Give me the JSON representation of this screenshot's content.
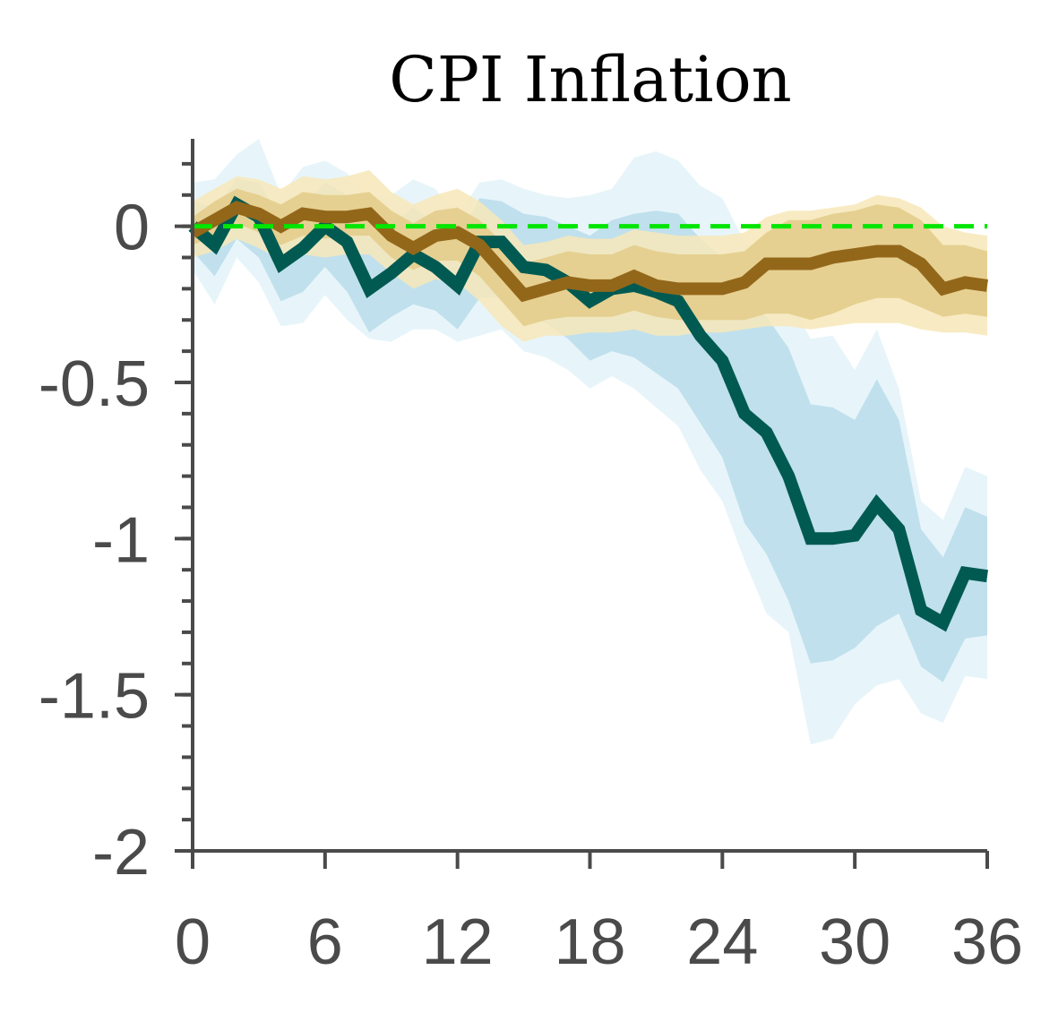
{
  "chart_data": {
    "type": "line",
    "title": "CPI Inflation",
    "xlabel": "",
    "ylabel": "",
    "xlim": [
      0,
      36
    ],
    "ylim": [
      -2,
      0.28
    ],
    "x_ticks": [
      0,
      6,
      12,
      18,
      24,
      30,
      36
    ],
    "y_ticks": [
      0,
      -0.5,
      -1,
      -1.5,
      -2
    ],
    "y_tick_labels": [
      "0",
      "-0.5",
      "-1",
      "-1.5",
      "-2"
    ],
    "grid": false,
    "legend": "none",
    "reference_line": {
      "y": 0,
      "style": "dashed",
      "color": "#00e600"
    },
    "x": [
      0,
      1,
      2,
      3,
      4,
      5,
      6,
      7,
      8,
      9,
      10,
      11,
      12,
      13,
      14,
      15,
      16,
      17,
      18,
      19,
      20,
      21,
      22,
      23,
      24,
      25,
      26,
      27,
      28,
      29,
      30,
      31,
      32,
      33,
      34,
      35,
      36
    ],
    "series": [
      {
        "color": "#005a52",
        "band_inner_color": "#b8dcea",
        "band_outer_color": "#e3f3f9",
        "values": [
          0,
          -0.06,
          0.07,
          0.03,
          -0.12,
          -0.07,
          0.0,
          -0.05,
          -0.2,
          -0.15,
          -0.09,
          -0.13,
          -0.19,
          -0.05,
          -0.05,
          -0.13,
          -0.14,
          -0.18,
          -0.24,
          -0.2,
          -0.19,
          -0.21,
          -0.24,
          -0.35,
          -0.43,
          -0.6,
          -0.66,
          -0.8,
          -1.0,
          -1.0,
          -0.99,
          -0.89,
          -0.97,
          -1.23,
          -1.27,
          -1.11,
          -1.12
        ],
        "inner_lower": [
          -0.08,
          -0.16,
          -0.04,
          -0.1,
          -0.24,
          -0.21,
          -0.13,
          -0.21,
          -0.34,
          -0.29,
          -0.25,
          -0.27,
          -0.33,
          -0.23,
          -0.23,
          -0.3,
          -0.31,
          -0.36,
          -0.43,
          -0.4,
          -0.42,
          -0.47,
          -0.52,
          -0.63,
          -0.74,
          -0.95,
          -1.05,
          -1.2,
          -1.4,
          -1.39,
          -1.35,
          -1.28,
          -1.24,
          -1.41,
          -1.46,
          -1.32,
          -1.31
        ],
        "inner_upper": [
          0.08,
          0.06,
          0.15,
          0.14,
          0.02,
          0.07,
          0.14,
          0.1,
          -0.04,
          0.01,
          0.06,
          0.01,
          -0.04,
          0.09,
          0.08,
          0.04,
          0.03,
          0.0,
          -0.03,
          0.02,
          0.04,
          0.05,
          0.04,
          -0.04,
          -0.1,
          -0.26,
          -0.29,
          -0.39,
          -0.57,
          -0.58,
          -0.62,
          -0.49,
          -0.62,
          -0.97,
          -1.06,
          -0.9,
          -0.93
        ],
        "outer_lower": [
          -0.14,
          -0.25,
          -0.1,
          -0.18,
          -0.32,
          -0.31,
          -0.22,
          -0.3,
          -0.36,
          -0.37,
          -0.33,
          -0.33,
          -0.37,
          -0.35,
          -0.33,
          -0.4,
          -0.42,
          -0.46,
          -0.52,
          -0.48,
          -0.52,
          -0.58,
          -0.64,
          -0.78,
          -0.88,
          -1.07,
          -1.24,
          -1.3,
          -1.66,
          -1.64,
          -1.53,
          -1.47,
          -1.45,
          -1.56,
          -1.59,
          -1.44,
          -1.45
        ],
        "outer_upper": [
          0.14,
          0.15,
          0.23,
          0.28,
          0.1,
          0.19,
          0.21,
          0.17,
          0.09,
          0.1,
          0.15,
          0.12,
          0.03,
          0.14,
          0.15,
          0.12,
          0.1,
          0.09,
          0.1,
          0.12,
          0.22,
          0.24,
          0.21,
          0.13,
          0.09,
          -0.05,
          -0.12,
          -0.23,
          -0.36,
          -0.35,
          -0.46,
          -0.33,
          -0.52,
          -0.88,
          -0.94,
          -0.77,
          -0.8
        ]
      },
      {
        "color": "#93671a",
        "band_inner_color": "#e3cb88",
        "band_outer_color": "#f7e7b8",
        "values": [
          -0.02,
          0.02,
          0.06,
          0.04,
          0.0,
          0.04,
          0.03,
          0.03,
          0.04,
          -0.03,
          -0.07,
          -0.03,
          -0.02,
          -0.06,
          -0.14,
          -0.22,
          -0.2,
          -0.18,
          -0.19,
          -0.19,
          -0.16,
          -0.19,
          -0.2,
          -0.2,
          -0.2,
          -0.18,
          -0.12,
          -0.12,
          -0.12,
          -0.1,
          -0.09,
          -0.08,
          -0.08,
          -0.12,
          -0.2,
          -0.18,
          -0.19
        ],
        "inner_lower": [
          -0.06,
          -0.03,
          0.01,
          -0.02,
          -0.06,
          -0.03,
          -0.04,
          -0.03,
          -0.03,
          -0.1,
          -0.14,
          -0.11,
          -0.11,
          -0.16,
          -0.24,
          -0.32,
          -0.3,
          -0.29,
          -0.29,
          -0.29,
          -0.27,
          -0.29,
          -0.3,
          -0.3,
          -0.3,
          -0.3,
          -0.28,
          -0.28,
          -0.3,
          -0.28,
          -0.25,
          -0.23,
          -0.23,
          -0.26,
          -0.29,
          -0.28,
          -0.29
        ],
        "inner_upper": [
          0.03,
          0.08,
          0.12,
          0.1,
          0.07,
          0.11,
          0.1,
          0.1,
          0.11,
          0.05,
          0.01,
          0.05,
          0.06,
          0.02,
          -0.05,
          -0.12,
          -0.1,
          -0.08,
          -0.09,
          -0.09,
          -0.06,
          -0.08,
          -0.09,
          -0.09,
          -0.09,
          -0.08,
          -0.02,
          0.02,
          0.02,
          0.04,
          0.05,
          0.07,
          0.06,
          0.02,
          -0.06,
          -0.06,
          -0.08
        ],
        "outer_lower": [
          -0.1,
          -0.08,
          -0.04,
          -0.07,
          -0.11,
          -0.09,
          -0.1,
          -0.09,
          -0.09,
          -0.15,
          -0.2,
          -0.17,
          -0.18,
          -0.24,
          -0.32,
          -0.37,
          -0.35,
          -0.35,
          -0.34,
          -0.34,
          -0.33,
          -0.35,
          -0.35,
          -0.34,
          -0.34,
          -0.33,
          -0.32,
          -0.32,
          -0.33,
          -0.32,
          -0.31,
          -0.31,
          -0.31,
          -0.33,
          -0.34,
          -0.34,
          -0.35
        ],
        "outer_upper": [
          0.08,
          0.12,
          0.16,
          0.15,
          0.12,
          0.16,
          0.15,
          0.16,
          0.18,
          0.11,
          0.07,
          0.1,
          0.12,
          0.08,
          0.02,
          -0.06,
          -0.05,
          -0.03,
          -0.04,
          -0.04,
          -0.01,
          -0.02,
          -0.03,
          -0.03,
          -0.03,
          -0.02,
          0.03,
          0.05,
          0.05,
          0.06,
          0.07,
          0.1,
          0.09,
          0.06,
          0.0,
          -0.02,
          -0.03
        ]
      }
    ]
  }
}
